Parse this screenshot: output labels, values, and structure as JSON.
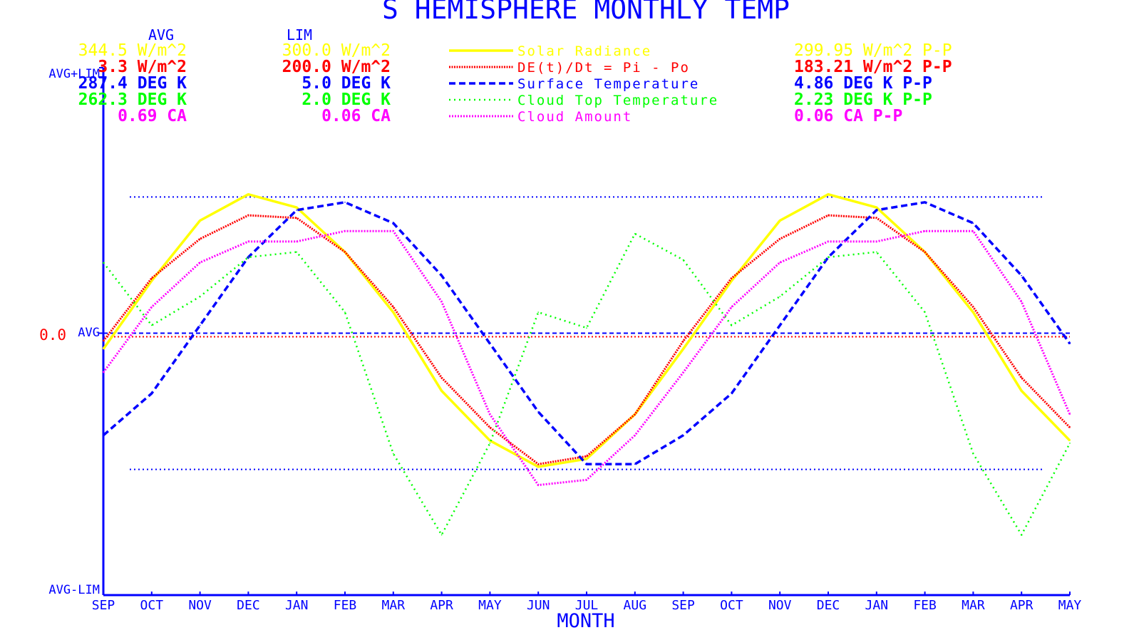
{
  "colors": {
    "axis": "#0000ff",
    "solar": "#ffff00",
    "de": "#ff0000",
    "surface": "#0000ff",
    "cloud_top": "#00ff00",
    "cloud_amount": "#ff00ff"
  },
  "chart_data": {
    "type": "line",
    "title": "S HEMISPHERE MONTHLY TEMP",
    "xlabel": "MONTH",
    "ylabel": "",
    "categories": [
      "SEP",
      "OCT",
      "NOV",
      "DEC",
      "JAN",
      "FEB",
      "MAR",
      "APR",
      "MAY",
      "JUN",
      "JUL",
      "AUG",
      "SEP",
      "OCT",
      "NOV",
      "DEC",
      "JAN",
      "FEB",
      "MAR",
      "APR",
      "MAY"
    ],
    "ylim": [
      -1,
      1
    ],
    "y_axis_labels": {
      "top": "AVG+LIM",
      "middle": "AVG",
      "bottom": "AVG-LIM",
      "zero": "0.0"
    },
    "stats_headers": {
      "avg": "AVG",
      "lim": "LIM"
    },
    "reference_lines": [
      0.52,
      0.0,
      -0.52
    ],
    "grid": false,
    "legend_position": "top",
    "series": [
      {
        "name": "Solar Radiance",
        "key": "solar",
        "style": "solid",
        "avg": "344.5 W/m^2",
        "lim": "300.0 W/m^2",
        "pp": "299.95 W/m^2 P-P",
        "values": [
          -0.06,
          0.2,
          0.43,
          0.53,
          0.48,
          0.31,
          0.08,
          -0.22,
          -0.41,
          -0.51,
          -0.48,
          -0.31,
          -0.06,
          0.2,
          0.43,
          0.53,
          0.48,
          0.31,
          0.08,
          -0.22,
          -0.41
        ]
      },
      {
        "name": "DE(t)/Dt = Pi - Po",
        "key": "de",
        "style": "dense-dot",
        "avg": "3.3 W/m^2",
        "lim": "200.0 W/m^2",
        "pp": "183.21 W/m^2 P-P",
        "values": [
          -0.03,
          0.21,
          0.36,
          0.45,
          0.44,
          0.31,
          0.1,
          -0.17,
          -0.36,
          -0.5,
          -0.47,
          -0.31,
          -0.03,
          0.21,
          0.36,
          0.45,
          0.44,
          0.31,
          0.1,
          -0.17,
          -0.36
        ]
      },
      {
        "name": "Surface Temperature",
        "key": "surface",
        "style": "dashed",
        "avg": "287.4 DEG K",
        "lim": "5.0 DEG K",
        "pp": "4.86 DEG K P-P",
        "values": [
          -0.39,
          -0.23,
          0.03,
          0.29,
          0.47,
          0.5,
          0.42,
          0.22,
          -0.04,
          -0.3,
          -0.5,
          -0.5,
          -0.39,
          -0.23,
          0.03,
          0.29,
          0.47,
          0.5,
          0.42,
          0.22,
          -0.04
        ]
      },
      {
        "name": "Cloud Top Temperature",
        "key": "cloud_top",
        "style": "dotted",
        "avg": "262.3 DEG K",
        "lim": "2.0 DEG K",
        "pp": "2.23 DEG K P-P",
        "values": [
          0.27,
          0.03,
          0.14,
          0.29,
          0.31,
          0.08,
          -0.46,
          -0.77,
          -0.42,
          0.08,
          0.02,
          0.38,
          0.28,
          0.03,
          0.14,
          0.29,
          0.31,
          0.08,
          -0.46,
          -0.77,
          -0.42
        ]
      },
      {
        "name": "Cloud Amount",
        "key": "cloud_amount",
        "style": "dotted-thick",
        "avg": "0.69 CA",
        "lim": "0.06 CA",
        "pp": "0.06 CA P-P",
        "values": [
          -0.15,
          0.1,
          0.27,
          0.35,
          0.35,
          0.39,
          0.39,
          0.12,
          -0.31,
          -0.58,
          -0.56,
          -0.39,
          -0.15,
          0.1,
          0.27,
          0.35,
          0.35,
          0.39,
          0.39,
          0.12,
          -0.31
        ]
      }
    ]
  }
}
